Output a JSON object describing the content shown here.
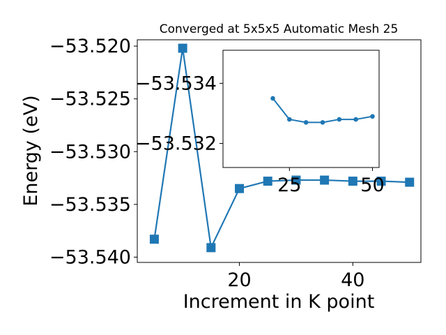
{
  "chart_data": [
    {
      "type": "line",
      "title": "Converged at 5x5x5 Automatic Mesh 25",
      "xlabel": "Increment in K point",
      "ylabel": "Energy (eV)",
      "xlim": [
        2,
        52
      ],
      "ylim": [
        -53.5405,
        -53.5194
      ],
      "xticks": [
        20,
        40
      ],
      "xtick_labels": [
        "20",
        "40"
      ],
      "yticks": [
        -53.52,
        -53.525,
        -53.53,
        -53.535,
        -53.54
      ],
      "ytick_labels": [
        "−53.520",
        "−53.525",
        "−53.530",
        "−53.535",
        "−53.540"
      ],
      "grid": false,
      "legend": false,
      "color": "#1f77b4",
      "marker": "square",
      "series": [
        {
          "x": [
            5,
            10,
            15,
            20,
            25,
            30,
            35,
            40,
            45,
            50
          ],
          "y": [
            -53.5383,
            -53.5202,
            -53.5391,
            -53.5335,
            -53.5328,
            -53.5327,
            -53.5327,
            -53.5328,
            -53.5328,
            -53.5329
          ]
        }
      ]
    },
    {
      "type": "line",
      "title": "",
      "xlabel": "",
      "ylabel": "",
      "xlim": [
        5,
        52
      ],
      "ylim": [
        -53.5312,
        -53.5351
      ],
      "xticks": [
        25,
        50
      ],
      "xtick_labels": [
        "25",
        "50"
      ],
      "yticks": [
        -53.534,
        -53.532
      ],
      "ytick_labels": [
        "−53.534",
        "−53.532"
      ],
      "grid": false,
      "legend": false,
      "color": "#1f77b4",
      "marker": "circle",
      "series": [
        {
          "x": [
            20,
            25,
            30,
            35,
            40,
            45,
            50
          ],
          "y": [
            -53.5335,
            -53.5328,
            -53.5327,
            -53.5327,
            -53.5328,
            -53.5328,
            -53.5329
          ]
        }
      ]
    }
  ]
}
